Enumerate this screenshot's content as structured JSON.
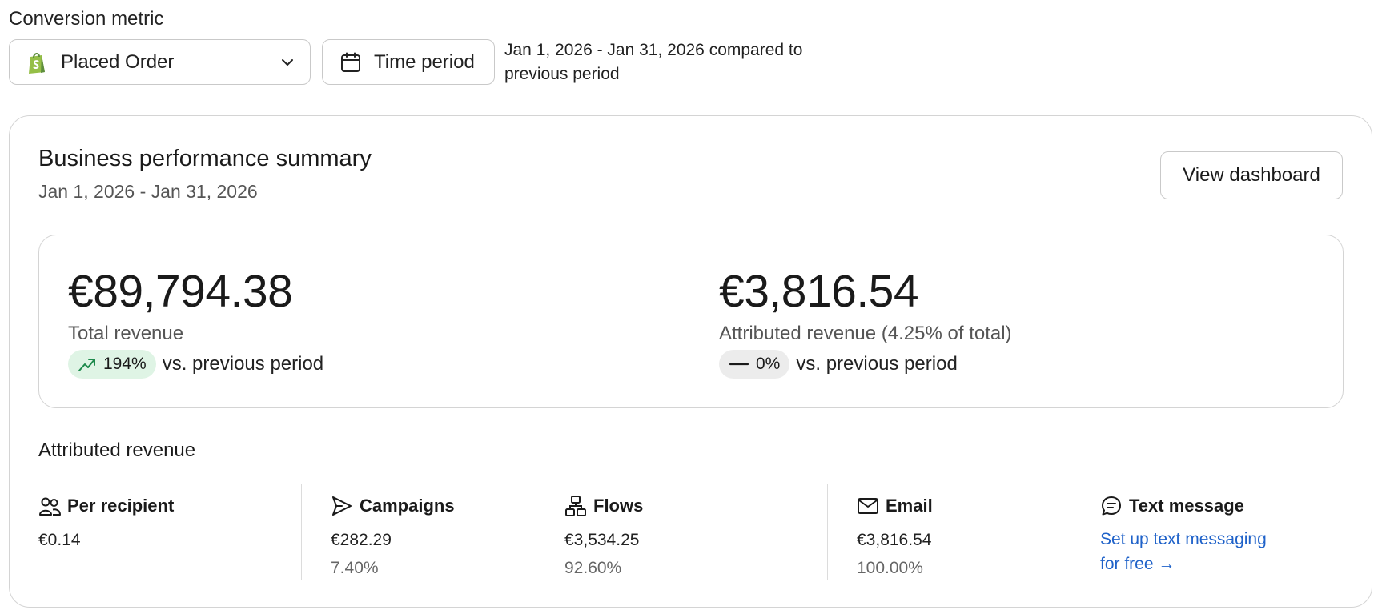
{
  "conversion": {
    "label": "Conversion metric",
    "selected": "Placed Order",
    "time_button": "Time period",
    "period_description": "Jan 1, 2026 - Jan 31, 2026 compared to previous period"
  },
  "summary": {
    "title": "Business performance summary",
    "date_range": "Jan 1, 2026 - Jan 31, 2026",
    "view_button": "View dashboard",
    "total": {
      "value": "€89,794.38",
      "label": "Total revenue",
      "change": "194%",
      "vs": "vs. previous period"
    },
    "attributed": {
      "value": "€3,816.54",
      "label": "Attributed revenue (4.25% of total)",
      "change": "0%",
      "vs": "vs. previous period"
    }
  },
  "attributed_revenue": {
    "title": "Attributed revenue",
    "per_recipient": {
      "label": "Per recipient",
      "value": "€0.14"
    },
    "campaigns": {
      "label": "Campaigns",
      "value": "€282.29",
      "pct": "7.40%"
    },
    "flows": {
      "label": "Flows",
      "value": "€3,534.25",
      "pct": "92.60%"
    },
    "email": {
      "label": "Email",
      "value": "€3,816.54",
      "pct": "100.00%"
    },
    "text_message": {
      "label": "Text message",
      "link": "Set up text messaging for free →"
    }
  },
  "colors": {
    "accent_link": "#1f62c9",
    "positive_bg": "#dff4e5",
    "positive_icon": "#1e8a4c",
    "neutral_bg": "#ececec",
    "shopify_green": "#95bf47"
  }
}
